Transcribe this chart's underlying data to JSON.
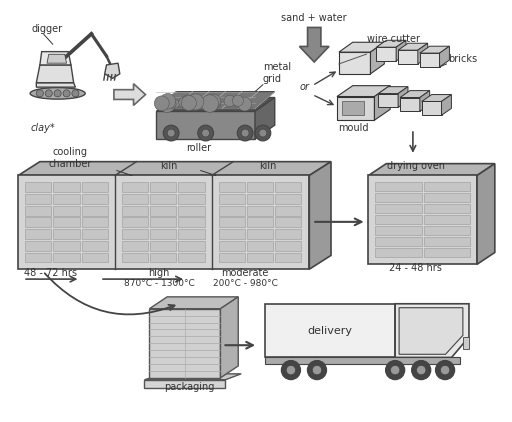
{
  "background_color": "#ffffff",
  "labels": {
    "digger": "digger",
    "clay": "clay*",
    "roller": "roller",
    "metal_grid": "metal\ngrid",
    "sand_water": "sand + water",
    "wire_cutter": "wire cutter",
    "bricks": "bricks",
    "mould": "mould",
    "or": "or",
    "cooling_chamber": "cooling\nchamber",
    "kiln1": "kiln",
    "kiln2": "kiln",
    "drying_oven": "drying oven",
    "hrs_cooling": "48 - 72 hrs",
    "high": "high",
    "temp_high": "870°C - 1300°C",
    "moderate": "moderate",
    "temp_moderate": "200°C - 980°C",
    "hrs_drying": "24 - 48 hrs",
    "packaging": "packaging",
    "delivery": "delivery"
  },
  "colors": {
    "bg": "#ffffff",
    "dark": "#333333",
    "med": "#888888",
    "light": "#cccccc",
    "lighter": "#e8e8e8",
    "top_face": "#b5b5b5",
    "front_face": "#d5d5d5",
    "side_face": "#9a9a9a",
    "brick_row": "#c0c0c0",
    "brick_inner": "#b0b0b0",
    "arrow_fill": "#999999",
    "arrow_outline": "#555555",
    "conveyor_dark": "#555555",
    "conveyor_med": "#888888",
    "conveyor_top": "#444444"
  }
}
